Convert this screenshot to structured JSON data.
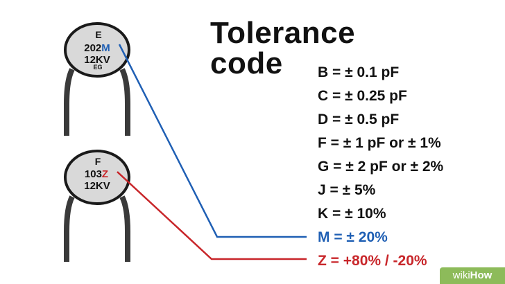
{
  "title": {
    "line1": "Tolerance",
    "line2": "code"
  },
  "capacitor_top": {
    "line1": "E",
    "value_prefix": "202",
    "code_letter": "M",
    "voltage": "12KV",
    "footer": "EG"
  },
  "capacitor_bottom": {
    "line1": "F",
    "value_prefix": "103",
    "code_letter": "Z",
    "voltage": "12KV"
  },
  "codes": [
    {
      "text": "B = ± 0.1 pF",
      "color": "#111111"
    },
    {
      "text": "C = ± 0.25 pF",
      "color": "#111111"
    },
    {
      "text": "D = ± 0.5 pF",
      "color": "#111111"
    },
    {
      "text": "F = ± 1 pF or ± 1%",
      "color": "#111111"
    },
    {
      "text": "G = ± 2 pF or ± 2%",
      "color": "#111111"
    },
    {
      "text": "J = ± 5%",
      "color": "#111111"
    },
    {
      "text": "K = ± 10%",
      "color": "#111111"
    },
    {
      "text": "M = ± 20%",
      "color": "#1f5fb4"
    },
    {
      "text": "Z = +80% / -20%",
      "color": "#c8262a"
    }
  ],
  "colors": {
    "blue": "#1f5fb4",
    "red": "#c8262a",
    "capacitor_body": "#d9d9d9",
    "leg": "#3a3a3a",
    "watermark_bg": "#8dbb5a"
  },
  "watermark": {
    "part1": "wiki",
    "part2": "How"
  }
}
